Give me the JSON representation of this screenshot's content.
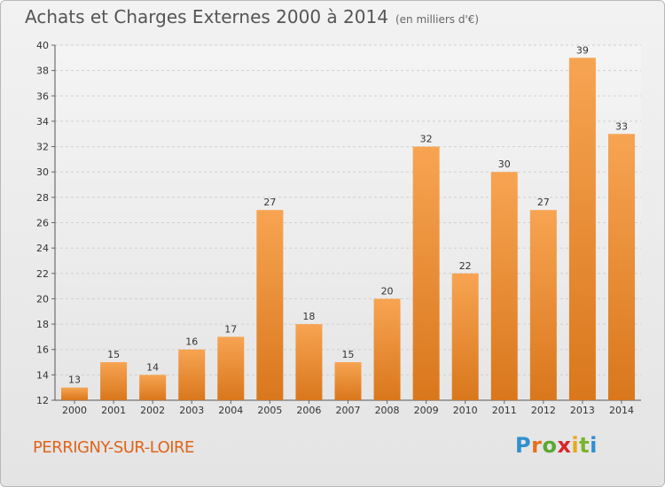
{
  "header": {
    "title": "Achats et Charges Externes 2000 à 2014",
    "subtitle": "(en milliers d'€)"
  },
  "footer": {
    "commune": "PERRIGNY-SUR-LOIRE",
    "logo_text": "Proxiti"
  },
  "colors": {
    "bar_top": "#f7a452",
    "bar_bottom": "#d9771c",
    "commune_text": "#e0641a",
    "logo_letters": [
      "#2f8fd0",
      "#e8701a",
      "#5aa832",
      "#d9262a",
      "#e8a81a",
      "#7ab32e",
      "#2f8fd0"
    ]
  },
  "chart_data": {
    "type": "bar",
    "title": "Achats et Charges Externes 2000 à 2014",
    "subtitle": "(en milliers d'€)",
    "categories": [
      "2000",
      "2001",
      "2002",
      "2003",
      "2004",
      "2005",
      "2006",
      "2007",
      "2008",
      "2009",
      "2010",
      "2011",
      "2012",
      "2013",
      "2014"
    ],
    "values": [
      13,
      15,
      14,
      16,
      17,
      27,
      18,
      15,
      20,
      32,
      22,
      30,
      27,
      39,
      33
    ],
    "ylim": [
      12,
      40
    ],
    "yticks": [
      12,
      14,
      16,
      18,
      20,
      22,
      24,
      26,
      28,
      30,
      32,
      34,
      36,
      38,
      40
    ],
    "grid": true,
    "xlabel": "",
    "ylabel": ""
  }
}
